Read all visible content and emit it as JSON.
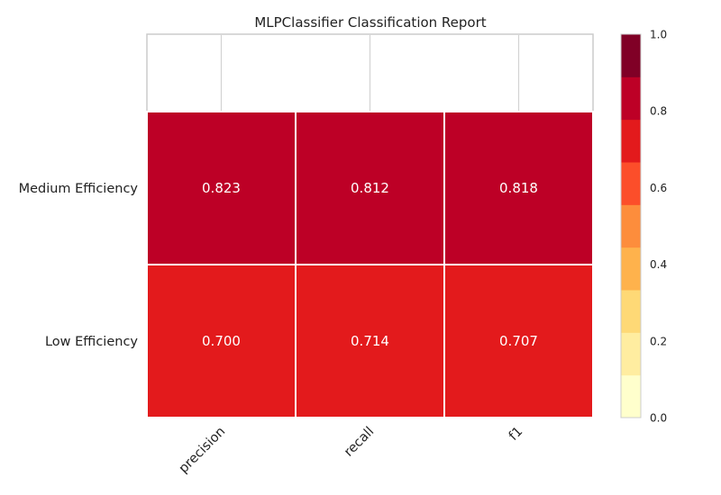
{
  "chart_data": {
    "type": "heatmap",
    "title": "MLPClassifier Classification Report",
    "xlabel": "",
    "ylabel": "",
    "columns": [
      "precision",
      "recall",
      "f1"
    ],
    "rows": [
      "Medium Efficiency",
      "Low Efficiency"
    ],
    "values": [
      [
        0.823,
        0.812,
        0.818
      ],
      [
        0.7,
        0.714,
        0.707
      ]
    ],
    "value_labels": [
      [
        "0.823",
        "0.812",
        "0.818"
      ],
      [
        "0.700",
        "0.714",
        "0.707"
      ]
    ],
    "colorbar": {
      "vmin": 0.0,
      "vmax": 1.0,
      "ticks": [
        0.0,
        0.2,
        0.4,
        0.6,
        0.8,
        1.0
      ],
      "tick_labels": [
        "0.0",
        "0.2",
        "0.4",
        "0.6",
        "0.8",
        "1.0"
      ],
      "colors": [
        "#ffffcc",
        "#ffeda0",
        "#fed976",
        "#feb24c",
        "#fd8d3c",
        "#fc4e2a",
        "#e31a1c",
        "#bd0026",
        "#800026"
      ]
    },
    "grid": true
  }
}
